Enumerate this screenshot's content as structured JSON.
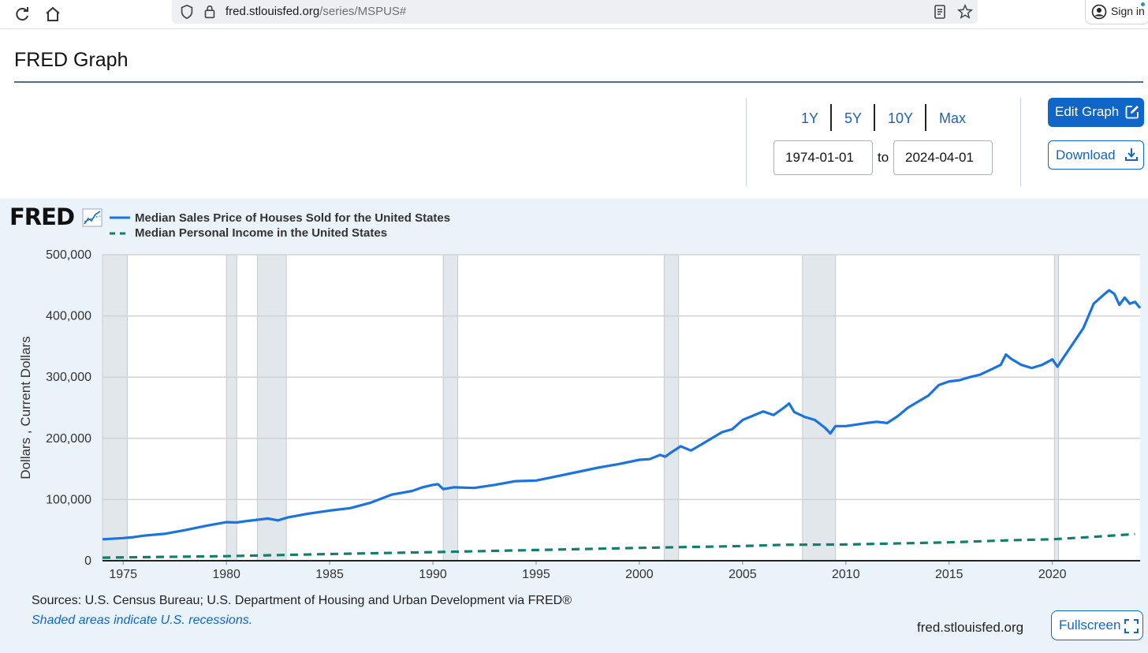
{
  "browser": {
    "url_host": "fred.stlouisfed.org",
    "url_path": "/series/MSPUS#",
    "signin_label": "Sign in"
  },
  "page": {
    "title": "FRED Graph"
  },
  "controls": {
    "ranges": [
      "1Y",
      "5Y",
      "10Y",
      "Max"
    ],
    "start_date": "1974-01-01",
    "to_label": "to",
    "end_date": "2024-04-01",
    "edit_graph_label": "Edit Graph",
    "download_label": "Download"
  },
  "footer": {
    "sources": "Sources: U.S. Census Bureau; U.S. Department of Housing and Urban Development via FRED®",
    "recession_note": "Shaded areas indicate U.S. recessions.",
    "site": "fred.stlouisfed.org",
    "fullscreen_label": "Fullscreen"
  },
  "colors": {
    "series1": "#1a73e0",
    "series2": "#117e6e",
    "accent": "#1066c8",
    "panel": "#eaf2fa"
  },
  "chart_data": {
    "type": "line",
    "logo": "FRED",
    "ylabel": "Dollars , Current Dollars",
    "xlabel": "",
    "xlim": [
      1974.0,
      2024.25
    ],
    "ylim": [
      0,
      500000
    ],
    "y_ticks": [
      0,
      100000,
      200000,
      300000,
      400000,
      500000
    ],
    "y_tick_labels": [
      "0",
      "100,000",
      "200,000",
      "300,000",
      "400,000",
      "500,000"
    ],
    "x_ticks": [
      1975,
      1980,
      1985,
      1990,
      1995,
      2000,
      2005,
      2010,
      2015,
      2020
    ],
    "recessions": [
      [
        1974.0,
        1975.2
      ],
      [
        1980.0,
        1980.5
      ],
      [
        1981.5,
        1982.9
      ],
      [
        1990.5,
        1991.2
      ],
      [
        2001.2,
        2001.9
      ],
      [
        2007.9,
        2009.5
      ],
      [
        2020.1,
        2020.3
      ]
    ],
    "series": [
      {
        "name": "Median Sales Price of Houses Sold for the United States",
        "style": "solid",
        "points": [
          [
            1974.0,
            35000
          ],
          [
            1975.0,
            37000
          ],
          [
            1975.5,
            38500
          ],
          [
            1976.0,
            41000
          ],
          [
            1977.0,
            44000
          ],
          [
            1978.0,
            50000
          ],
          [
            1979.0,
            57000
          ],
          [
            1980.0,
            63000
          ],
          [
            1980.5,
            62500
          ],
          [
            1981.0,
            65000
          ],
          [
            1982.0,
            69000
          ],
          [
            1982.5,
            66000
          ],
          [
            1983.0,
            71000
          ],
          [
            1984.0,
            77000
          ],
          [
            1985.0,
            82000
          ],
          [
            1986.0,
            86000
          ],
          [
            1987.0,
            95000
          ],
          [
            1988.0,
            108000
          ],
          [
            1988.5,
            111000
          ],
          [
            1989.0,
            114000
          ],
          [
            1989.5,
            120000
          ],
          [
            1990.0,
            124000
          ],
          [
            1990.25,
            125000
          ],
          [
            1990.5,
            117000
          ],
          [
            1991.0,
            120000
          ],
          [
            1992.0,
            119000
          ],
          [
            1993.0,
            124000
          ],
          [
            1994.0,
            130000
          ],
          [
            1995.0,
            131000
          ],
          [
            1996.0,
            138000
          ],
          [
            1997.0,
            145000
          ],
          [
            1998.0,
            152000
          ],
          [
            1999.0,
            158000
          ],
          [
            2000.0,
            165000
          ],
          [
            2000.5,
            166000
          ],
          [
            2001.0,
            173000
          ],
          [
            2001.25,
            170000
          ],
          [
            2001.5,
            176000
          ],
          [
            2002.0,
            187000
          ],
          [
            2002.5,
            180000
          ],
          [
            2003.0,
            190000
          ],
          [
            2004.0,
            210000
          ],
          [
            2004.5,
            215000
          ],
          [
            2005.0,
            230000
          ],
          [
            2006.0,
            244000
          ],
          [
            2006.5,
            238000
          ],
          [
            2007.0,
            250000
          ],
          [
            2007.25,
            257000
          ],
          [
            2007.5,
            243000
          ],
          [
            2008.0,
            235000
          ],
          [
            2008.5,
            230000
          ],
          [
            2009.0,
            217000
          ],
          [
            2009.25,
            208000
          ],
          [
            2009.5,
            220000
          ],
          [
            2010.0,
            220000
          ],
          [
            2011.0,
            225000
          ],
          [
            2011.5,
            227000
          ],
          [
            2012.0,
            225000
          ],
          [
            2012.5,
            236000
          ],
          [
            2013.0,
            250000
          ],
          [
            2014.0,
            270000
          ],
          [
            2014.5,
            287000
          ],
          [
            2015.0,
            293000
          ],
          [
            2015.5,
            295000
          ],
          [
            2016.0,
            300000
          ],
          [
            2016.5,
            304000
          ],
          [
            2017.0,
            312000
          ],
          [
            2017.5,
            320000
          ],
          [
            2017.75,
            337000
          ],
          [
            2018.0,
            330000
          ],
          [
            2018.5,
            320000
          ],
          [
            2019.0,
            315000
          ],
          [
            2019.5,
            320000
          ],
          [
            2020.0,
            329000
          ],
          [
            2020.25,
            317000
          ],
          [
            2020.5,
            330000
          ],
          [
            2021.0,
            355000
          ],
          [
            2021.5,
            380000
          ],
          [
            2022.0,
            420000
          ],
          [
            2022.5,
            435000
          ],
          [
            2022.75,
            442000
          ],
          [
            2023.0,
            436000
          ],
          [
            2023.25,
            418000
          ],
          [
            2023.5,
            430000
          ],
          [
            2023.75,
            420000
          ],
          [
            2024.0,
            423000
          ],
          [
            2024.25,
            413000
          ]
        ]
      },
      {
        "name": "Median Personal Income in the United States",
        "style": "dashed",
        "points": [
          [
            1974.0,
            5000
          ],
          [
            1980.0,
            7500
          ],
          [
            1985.0,
            11000
          ],
          [
            1990.0,
            14000
          ],
          [
            1995.0,
            17500
          ],
          [
            2000.0,
            21000
          ],
          [
            2005.0,
            24000
          ],
          [
            2007.0,
            26000
          ],
          [
            2010.0,
            26500
          ],
          [
            2015.0,
            30000
          ],
          [
            2018.0,
            33500
          ],
          [
            2020.0,
            35000
          ],
          [
            2022.0,
            39000
          ],
          [
            2024.0,
            43500
          ]
        ]
      }
    ]
  }
}
